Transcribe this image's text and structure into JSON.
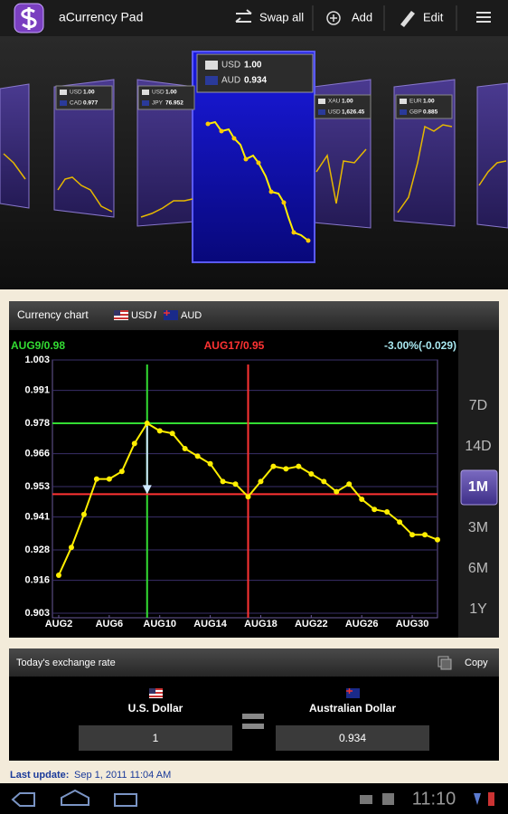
{
  "app_bar": {
    "title": "aCurrency Pad",
    "actions": [
      "Swap all",
      "Add",
      "Edit"
    ]
  },
  "carousel": {
    "cards": [
      {
        "rows": [
          {
            "code": "USD",
            "value": "1.00"
          },
          {
            "code": "CAD",
            "value": "0.977"
          }
        ]
      },
      {
        "rows": [
          {
            "code": "USD",
            "value": "1.00"
          },
          {
            "code": "JPY",
            "value": "76.952"
          }
        ]
      },
      {
        "rows": [
          {
            "code": "USD",
            "value": "1.00"
          },
          {
            "code": "AUD",
            "value": "0.934"
          }
        ]
      },
      {
        "rows": [
          {
            "code": "XAU",
            "value": "1.00"
          },
          {
            "code": "USD",
            "value": "1,626.45"
          }
        ]
      },
      {
        "rows": [
          {
            "code": "EUR",
            "value": "1.00"
          },
          {
            "code": "GBP",
            "value": "0.885"
          }
        ]
      }
    ]
  },
  "chart_panel": {
    "title": "Currency chart",
    "base": "USD",
    "separator": "/",
    "quote": "AUD"
  },
  "chart_data": {
    "type": "line",
    "x": [
      2,
      3,
      4,
      5,
      6,
      7,
      8,
      9,
      10,
      11,
      12,
      13,
      14,
      15,
      16,
      17,
      18,
      19,
      20,
      21,
      22,
      23,
      24,
      25,
      26,
      27,
      28,
      29,
      30,
      31,
      32
    ],
    "series": [
      {
        "name": "USD/AUD",
        "color": "#ffee00",
        "values": [
          0.918,
          0.929,
          0.942,
          0.956,
          0.956,
          0.959,
          0.97,
          0.978,
          0.975,
          0.974,
          0.968,
          0.965,
          0.962,
          0.955,
          0.954,
          0.949,
          0.955,
          0.961,
          0.96,
          0.961,
          0.958,
          0.955,
          0.951,
          0.954,
          0.948,
          0.944,
          0.943,
          0.939,
          0.934,
          0.934,
          0.932
        ]
      }
    ],
    "xlim": [
      1.5,
      32
    ],
    "xticks": [
      {
        "value": 2,
        "label": "AUG2"
      },
      {
        "value": 6,
        "label": "AUG6"
      },
      {
        "value": 10,
        "label": "AUG10"
      },
      {
        "value": 14,
        "label": "AUG14"
      },
      {
        "value": 18,
        "label": "AUG18"
      },
      {
        "value": 22,
        "label": "AUG22"
      },
      {
        "value": 26,
        "label": "AUG26"
      },
      {
        "value": 30,
        "label": "AUG30"
      }
    ],
    "ylim": [
      0.903,
      1.003
    ],
    "yticks": [
      1.003,
      0.991,
      0.978,
      0.966,
      0.953,
      0.941,
      0.928,
      0.916,
      0.903
    ],
    "grid": true,
    "markers": [
      {
        "label": "AUG9/0.98",
        "x": 9,
        "y": 0.978,
        "color": "#33dd33"
      },
      {
        "label": "AUG17/0.95",
        "x": 17,
        "y": 0.95,
        "color": "#ff3333"
      }
    ],
    "change_label": "-3.00%(-0.029)"
  },
  "ranges": {
    "options": [
      "7D",
      "14D",
      "1M",
      "3M",
      "6M",
      "1Y"
    ],
    "selected": "1M"
  },
  "rate_panel": {
    "title": "Today's exchange rate",
    "copy": "Copy",
    "from_name": "U.S. Dollar",
    "to_name": "Australian Dollar",
    "from_amount": "1",
    "to_amount": "0.934"
  },
  "footer": {
    "label": "Last update:",
    "value": "Sep 1, 2011 11:04 AM"
  },
  "status": {
    "time": "11:10"
  }
}
